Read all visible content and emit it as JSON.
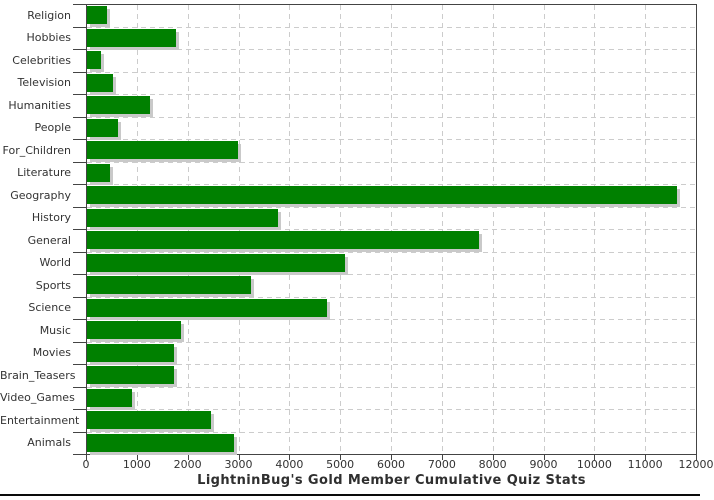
{
  "chart_data": {
    "type": "bar",
    "orientation": "horizontal",
    "title": "LightninBug's Gold Member Cumulative Quiz Stats",
    "title_position": "bottom",
    "categories": [
      "Religion",
      "Hobbies",
      "Celebrities",
      "Television",
      "Humanities",
      "People",
      "For_Children",
      "Literature",
      "Geography",
      "History",
      "General",
      "World",
      "Sports",
      "Science",
      "Music",
      "Movies",
      "Brain_Teasers",
      "Video_Games",
      "Entertainment",
      "Animals"
    ],
    "values": [
      400,
      1760,
      270,
      520,
      1240,
      600,
      2980,
      460,
      11600,
      3760,
      7710,
      5080,
      3220,
      4720,
      1840,
      1720,
      1710,
      890,
      2440,
      2900
    ],
    "xlabel": "",
    "ylabel": "",
    "xlim": [
      0,
      12000
    ],
    "x_ticks": [
      0,
      1000,
      2000,
      3000,
      4000,
      5000,
      6000,
      7000,
      8000,
      9000,
      10000,
      11000,
      12000
    ],
    "grid": true,
    "legend": false,
    "bar_color": "#008000",
    "shadow_color": "#c9c9c9",
    "grid_color": "#cccccc",
    "axis_color": "#444444",
    "text_color": "#333333",
    "background_color": "#ffffff"
  }
}
